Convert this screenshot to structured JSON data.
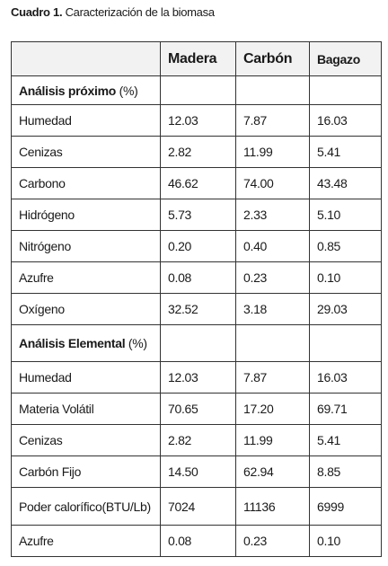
{
  "caption": {
    "label": "Cuadro 1.",
    "text": "Caracterización de la biomasa"
  },
  "table": {
    "columns": [
      "Madera",
      "Carbón",
      "Bagazo"
    ],
    "sections": [
      {
        "title": "Análisis próximo",
        "unit": "(%)",
        "rows": [
          [
            "Humedad",
            "12.03",
            "7.87",
            "16.03"
          ],
          [
            "Cenizas",
            "2.82",
            "11.99",
            "5.41"
          ],
          [
            "Carbono",
            "46.62",
            "74.00",
            "43.48"
          ],
          [
            "Hidrógeno",
            "5.73",
            "2.33",
            "5.10"
          ],
          [
            "Nitrógeno",
            "0.20",
            "0.40",
            "0.85"
          ],
          [
            "Azufre",
            "0.08",
            "0.23",
            "0.10"
          ],
          [
            "Oxígeno",
            "32.52",
            "3.18",
            "29.03"
          ]
        ]
      },
      {
        "title": "Análisis Elemental",
        "unit": "(%)",
        "rows": [
          [
            "Humedad",
            "12.03",
            "7.87",
            "16.03"
          ],
          [
            "Materia Volátil",
            "70.65",
            "17.20",
            "69.71"
          ],
          [
            "Cenizas",
            "2.82",
            "11.99",
            "5.41"
          ],
          [
            "Carbón Fijo",
            "14.50",
            "62.94",
            "8.85"
          ],
          [
            "Poder calorífico(BTU/Lb)",
            "7024",
            "11136",
            "6999"
          ],
          [
            "Azufre",
            "0.08",
            "0.23",
            "0.10"
          ]
        ]
      }
    ]
  }
}
